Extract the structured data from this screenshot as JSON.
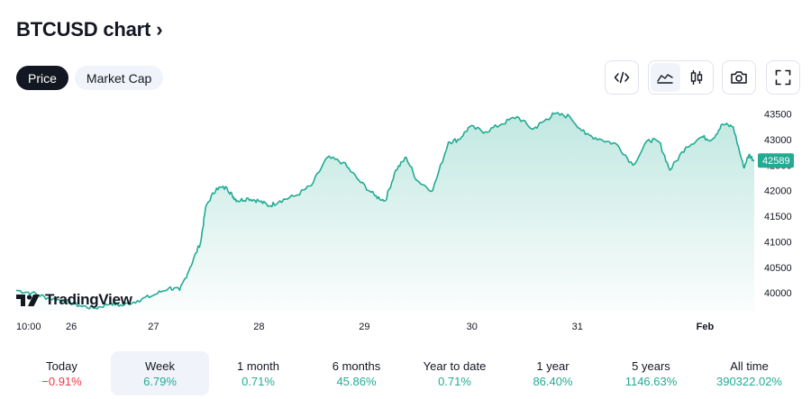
{
  "header": {
    "title": "BTCUSD chart",
    "chevron": "›"
  },
  "tabs": [
    {
      "label": "Price",
      "active": true
    },
    {
      "label": "Market Cap",
      "active": false
    }
  ],
  "toolbar": {
    "icons": [
      "embed-code-icon",
      "area-chart-icon",
      "candlestick-icon",
      "camera-icon",
      "fullscreen-icon"
    ],
    "active_style": "area"
  },
  "branding": {
    "logo_text": "TradingView"
  },
  "colors": {
    "line": "#22ab94",
    "fill_top": "#22ab94",
    "price_label_bg": "#22ab94",
    "positive": "#22ab94",
    "negative": "#f23645"
  },
  "chart_data": {
    "type": "area",
    "symbol": "BTCUSD",
    "x_ticks": [
      "10:00",
      "26",
      "27",
      "28",
      "29",
      "30",
      "31",
      "Feb"
    ],
    "y_ticks": [
      40000,
      40500,
      41000,
      41500,
      42000,
      42500,
      43000,
      43500
    ],
    "ylim": [
      39650,
      43650
    ],
    "last_price": "42589",
    "series": [
      {
        "x": [
          0,
          0.15,
          0.3,
          0.45,
          0.6,
          0.75,
          0.9,
          1.0,
          1.15,
          1.3,
          1.45,
          1.55,
          1.65,
          1.75,
          1.8,
          1.9,
          2.0,
          2.05,
          2.1,
          2.2,
          2.3,
          2.4,
          2.5,
          2.65,
          2.8,
          2.95,
          3.1,
          3.25,
          3.4,
          3.5,
          3.6,
          3.7,
          3.8,
          3.95,
          4.1,
          4.2,
          4.3,
          4.45,
          4.6,
          4.75,
          4.9,
          5.0,
          5.1,
          5.25,
          5.4,
          5.55,
          5.7,
          5.85,
          6.0,
          6.1,
          6.2,
          6.35,
          6.5,
          6.6,
          6.7,
          6.8,
          6.9,
          6.95,
          7.0
        ],
        "y": [
          40050,
          40000,
          39900,
          39850,
          39750,
          39700,
          39800,
          39750,
          39850,
          39950,
          40100,
          40050,
          40500,
          41000,
          41700,
          42050,
          42050,
          41900,
          41800,
          41850,
          41800,
          41700,
          41800,
          41900,
          42100,
          42650,
          42550,
          42200,
          41900,
          41800,
          42400,
          42650,
          42200,
          42000,
          42950,
          43000,
          43250,
          43150,
          43300,
          43450,
          43200,
          43350,
          43500,
          43450,
          43100,
          43000,
          42900,
          42500,
          43000,
          42950,
          42400,
          42850,
          43050,
          43000,
          43300,
          43250,
          42450,
          42700,
          42589
        ]
      }
    ]
  },
  "periods": [
    {
      "label": "Today",
      "value": "−0.91%",
      "trend": "neg",
      "active": false
    },
    {
      "label": "Week",
      "value": "6.79%",
      "trend": "pos",
      "active": true
    },
    {
      "label": "1 month",
      "value": "0.71%",
      "trend": "pos",
      "active": false
    },
    {
      "label": "6 months",
      "value": "45.86%",
      "trend": "pos",
      "active": false
    },
    {
      "label": "Year to date",
      "value": "0.71%",
      "trend": "pos",
      "active": false
    },
    {
      "label": "1 year",
      "value": "86.40%",
      "trend": "pos",
      "active": false
    },
    {
      "label": "5 years",
      "value": "1146.63%",
      "trend": "pos",
      "active": false
    },
    {
      "label": "All time",
      "value": "390322.02%",
      "trend": "pos",
      "active": false
    }
  ]
}
